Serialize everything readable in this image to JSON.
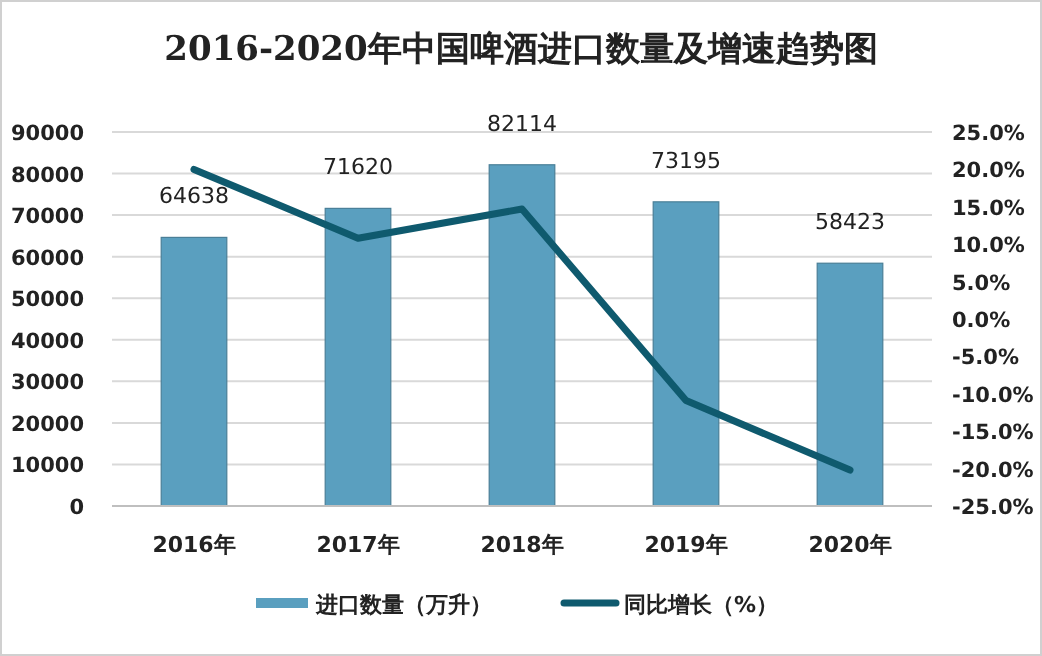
{
  "chart_data": {
    "type": "bar",
    "title": "2016-2020年中国啤酒进口数量及增速趋势图",
    "categories": [
      "2016年",
      "2017年",
      "2018年",
      "2019年",
      "2020年"
    ],
    "series": [
      {
        "name": "进口数量（万升）",
        "color": "#5a9fbf",
        "values": [
          64638,
          71620,
          82114,
          73195,
          58423
        ],
        "value_labels": [
          "64638",
          "71620",
          "82114",
          "73195",
          "58423"
        ]
      },
      {
        "name": "同比增长（%）",
        "type": "line",
        "axis": "y2",
        "color": "#0f5a6e",
        "values": [
          20.0,
          10.8,
          14.7,
          -10.9,
          -20.2
        ]
      }
    ],
    "ylim": [
      0,
      90000
    ],
    "yticks": [
      0,
      10000,
      20000,
      30000,
      40000,
      50000,
      60000,
      70000,
      80000,
      90000
    ],
    "y2lim": [
      -25,
      25
    ],
    "y2ticks": [
      {
        "value": -25,
        "label": "-25.0%"
      },
      {
        "value": -20,
        "label": "-20.0%"
      },
      {
        "value": -15,
        "label": "-15.0%"
      },
      {
        "value": -10,
        "label": "-10.0%"
      },
      {
        "value": -5,
        "label": "-5.0%"
      },
      {
        "value": 0,
        "label": "0.0%"
      },
      {
        "value": 5,
        "label": "5.0%"
      },
      {
        "value": 10,
        "label": "10.0%"
      },
      {
        "value": 15,
        "label": "15.0%"
      },
      {
        "value": 20,
        "label": "20.0%"
      },
      {
        "value": 25,
        "label": "25.0%"
      }
    ],
    "grid": "y",
    "legend": "bottom"
  }
}
